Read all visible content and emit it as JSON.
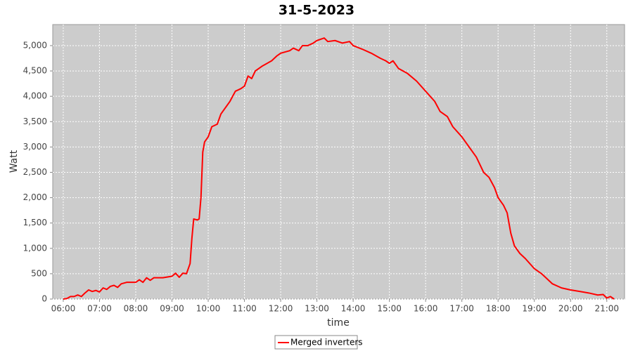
{
  "chart_data": {
    "type": "line",
    "title": "31-5-2023",
    "x_label": "time",
    "y_label": "Watt",
    "x": [
      6.0,
      6.1,
      6.2,
      6.3,
      6.4,
      6.5,
      6.6,
      6.7,
      6.8,
      6.9,
      7.0,
      7.1,
      7.2,
      7.3,
      7.4,
      7.5,
      7.6,
      7.75,
      8.0,
      8.1,
      8.2,
      8.3,
      8.4,
      8.5,
      8.75,
      9.0,
      9.1,
      9.2,
      9.3,
      9.4,
      9.5,
      9.55,
      9.6,
      9.7,
      9.75,
      9.8,
      9.85,
      9.9,
      10.0,
      10.1,
      10.25,
      10.35,
      10.5,
      10.6,
      10.75,
      10.9,
      11.0,
      11.1,
      11.2,
      11.3,
      11.5,
      11.75,
      11.9,
      12.0,
      12.25,
      12.35,
      12.5,
      12.6,
      12.75,
      12.9,
      13.0,
      13.2,
      13.3,
      13.5,
      13.7,
      13.9,
      14.0,
      14.25,
      14.5,
      14.75,
      14.9,
      15.0,
      15.1,
      15.25,
      15.5,
      15.75,
      16.0,
      16.25,
      16.4,
      16.6,
      16.75,
      17.0,
      17.25,
      17.4,
      17.6,
      17.75,
      17.9,
      18.0,
      18.15,
      18.25,
      18.35,
      18.45,
      18.6,
      18.75,
      19.0,
      19.1,
      19.2,
      19.5,
      19.75,
      20.0,
      20.25,
      20.5,
      20.75,
      20.9,
      21.0,
      21.1,
      21.2
    ],
    "series": [
      {
        "name": "Merged inverters",
        "color": "#ff0000",
        "values": [
          0,
          10,
          50,
          50,
          80,
          50,
          120,
          180,
          150,
          170,
          140,
          220,
          190,
          250,
          270,
          230,
          300,
          330,
          330,
          380,
          330,
          420,
          370,
          420,
          420,
          450,
          510,
          430,
          510,
          500,
          700,
          1200,
          1580,
          1560,
          1580,
          2000,
          2900,
          3100,
          3200,
          3400,
          3450,
          3650,
          3800,
          3900,
          4100,
          4150,
          4200,
          4400,
          4350,
          4500,
          4600,
          4700,
          4800,
          4850,
          4900,
          4950,
          4900,
          5000,
          5000,
          5050,
          5100,
          5150,
          5080,
          5100,
          5050,
          5080,
          5000,
          4930,
          4850,
          4750,
          4700,
          4650,
          4700,
          4550,
          4450,
          4300,
          4100,
          3900,
          3700,
          3600,
          3400,
          3200,
          2950,
          2800,
          2500,
          2400,
          2200,
          2000,
          1850,
          1700,
          1300,
          1050,
          900,
          800,
          600,
          550,
          500,
          300,
          220,
          180,
          150,
          120,
          80,
          90,
          20,
          50,
          0
        ]
      }
    ],
    "xlim": [
      5.71,
      21.49
    ],
    "xticks": [
      {
        "value": 6,
        "label": "06:00"
      },
      {
        "value": 7,
        "label": "07:00"
      },
      {
        "value": 8,
        "label": "08:00"
      },
      {
        "value": 9,
        "label": "09:00"
      },
      {
        "value": 10,
        "label": "10:00"
      },
      {
        "value": 11,
        "label": "11:00"
      },
      {
        "value": 12,
        "label": "12:00"
      },
      {
        "value": 13,
        "label": "13:00"
      },
      {
        "value": 14,
        "label": "14:00"
      },
      {
        "value": 15,
        "label": "15:00"
      },
      {
        "value": 16,
        "label": "16:00"
      },
      {
        "value": 17,
        "label": "17:00"
      },
      {
        "value": 18,
        "label": "18:00"
      },
      {
        "value": 19,
        "label": "19:00"
      },
      {
        "value": 20,
        "label": "20:00"
      },
      {
        "value": 21,
        "label": "21:00"
      }
    ],
    "ylim": [
      0,
      5415
    ],
    "yticks": [
      0,
      500,
      {
        "value": 1000,
        "label": "1,000"
      },
      {
        "value": 1500,
        "label": "1,500"
      },
      {
        "value": 2000,
        "label": "2,000"
      },
      {
        "value": 2500,
        "label": "2,500"
      },
      {
        "value": 3000,
        "label": "3,000"
      },
      {
        "value": 3500,
        "label": "3,500"
      },
      {
        "value": 4000,
        "label": "4,000"
      },
      {
        "value": 4500,
        "label": "4,500"
      },
      {
        "value": 5000,
        "label": "5,000"
      }
    ],
    "grid": true,
    "legend": "bottom"
  }
}
